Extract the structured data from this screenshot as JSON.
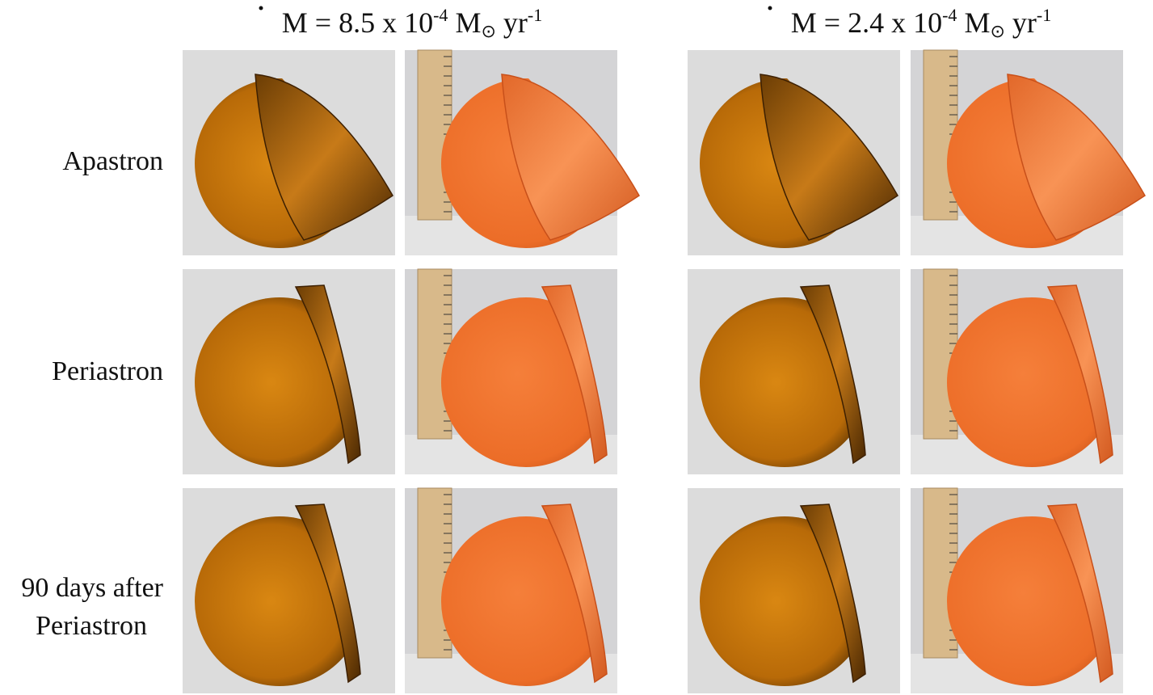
{
  "columns": [
    {
      "header": {
        "symbol": "M",
        "equation": "= 8.5 x 10",
        "exponent": "-4",
        "unit": "M",
        "sun": "⊙",
        "per": "yr",
        "per_exponent": "-1"
      }
    },
    {
      "header": {
        "symbol": "M",
        "equation": "= 2.4 x 10",
        "exponent": "-4",
        "unit": "M",
        "sun": "⊙",
        "per": "yr",
        "per_exponent": "-1"
      }
    }
  ],
  "rows": [
    {
      "label": [
        "Apastron"
      ]
    },
    {
      "label": [
        "Periastron"
      ]
    },
    {
      "label": [
        "90 days after",
        "Periastron"
      ]
    }
  ]
}
